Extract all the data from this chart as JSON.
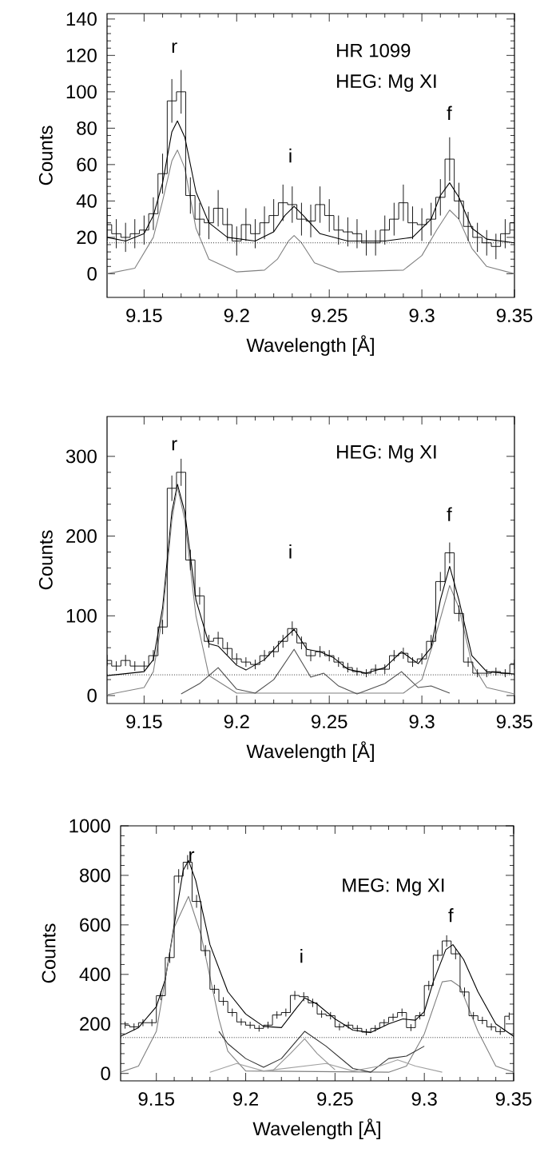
{
  "chart_data": [
    {
      "type": "line",
      "xlabel": "Wavelength [Å]",
      "ylabel": "Counts",
      "annotations": [
        "HR 1099",
        "HEG: Mg XI",
        "r",
        "i",
        "f"
      ],
      "xlim": [
        9.13,
        9.35
      ],
      "ylim": [
        -13,
        143
      ],
      "xticks": [
        9.15,
        9.2,
        9.25,
        9.3,
        9.35
      ],
      "yticks": [
        0,
        20,
        40,
        60,
        80,
        100,
        120,
        140
      ],
      "series": [
        {
          "type": "step",
          "color": "#000000",
          "x": [
            9.13,
            9.135,
            9.14,
            9.145,
            9.15,
            9.155,
            9.16,
            9.165,
            9.17,
            9.175,
            9.18,
            9.185,
            9.19,
            9.195,
            9.2,
            9.205,
            9.21,
            9.215,
            9.22,
            9.225,
            9.23,
            9.235,
            9.24,
            9.245,
            9.25,
            9.255,
            9.26,
            9.265,
            9.27,
            9.275,
            9.28,
            9.285,
            9.29,
            9.295,
            9.3,
            9.305,
            9.31,
            9.315,
            9.32,
            9.325,
            9.33,
            9.335,
            9.34,
            9.345,
            9.35
          ],
          "values": [
            27,
            22,
            20,
            22,
            24,
            33,
            55,
            95,
            100,
            43,
            30,
            28,
            36,
            27,
            18,
            27,
            22,
            28,
            32,
            39,
            38,
            30,
            29,
            38,
            32,
            24,
            23,
            22,
            17,
            17,
            24,
            30,
            39,
            28,
            27,
            30,
            42,
            63,
            40,
            26,
            20,
            17,
            15,
            22,
            28
          ],
          "errors": [
            9,
            8,
            8,
            8,
            8,
            9,
            11,
            12,
            12,
            10,
            9,
            9,
            10,
            9,
            8,
            9,
            8,
            9,
            9,
            10,
            10,
            9,
            9,
            10,
            9,
            8,
            8,
            8,
            7,
            7,
            8,
            9,
            10,
            9,
            9,
            9,
            10,
            12,
            10,
            8,
            8,
            7,
            7,
            8,
            9
          ]
        },
        {
          "color": "#000000",
          "x": [
            9.13,
            9.14,
            9.15,
            9.155,
            9.16,
            9.165,
            9.168,
            9.172,
            9.178,
            9.185,
            9.195,
            9.21,
            9.22,
            9.226,
            9.231,
            9.236,
            9.245,
            9.26,
            9.28,
            9.295,
            9.305,
            9.31,
            9.315,
            9.32,
            9.327,
            9.335,
            9.35
          ],
          "values": [
            20,
            18,
            22,
            32,
            50,
            78,
            84,
            75,
            45,
            28,
            20,
            18,
            23,
            32,
            37,
            32,
            22,
            18,
            18,
            20,
            30,
            43,
            50,
            42,
            25,
            19,
            17
          ]
        },
        {
          "color": "#808080",
          "x": [
            9.13,
            9.145,
            9.155,
            9.16,
            9.165,
            9.168,
            9.172,
            9.178,
            9.185,
            9.2,
            9.215,
            9.222,
            9.228,
            9.231,
            9.235,
            9.242,
            9.255,
            9.29,
            9.3,
            9.308,
            9.315,
            9.32,
            9.327,
            9.335,
            9.35
          ],
          "values": [
            0,
            3,
            20,
            40,
            62,
            68,
            58,
            25,
            8,
            1,
            2,
            8,
            18,
            21,
            17,
            6,
            1,
            2,
            10,
            24,
            35,
            30,
            14,
            4,
            0
          ]
        }
      ],
      "ref_lines": [
        {
          "axis": "y",
          "value": 17,
          "color": "#000000",
          "line_style": "dotted"
        }
      ]
    },
    {
      "type": "line",
      "xlabel": "Wavelength [Å]",
      "ylabel": "Counts",
      "annotations": [
        "HEG: Mg XI",
        "r",
        "i",
        "f"
      ],
      "xlim": [
        9.13,
        9.35
      ],
      "ylim": [
        -10,
        350
      ],
      "xticks": [
        9.15,
        9.2,
        9.25,
        9.3,
        9.35
      ],
      "yticks": [
        0,
        100,
        200,
        300
      ],
      "series": [
        {
          "type": "step",
          "color": "#000000",
          "x": [
            9.13,
            9.135,
            9.14,
            9.145,
            9.15,
            9.155,
            9.16,
            9.165,
            9.17,
            9.175,
            9.18,
            9.185,
            9.19,
            9.195,
            9.2,
            9.205,
            9.21,
            9.215,
            9.22,
            9.225,
            9.23,
            9.235,
            9.24,
            9.245,
            9.25,
            9.255,
            9.26,
            9.265,
            9.27,
            9.275,
            9.28,
            9.285,
            9.29,
            9.295,
            9.3,
            9.305,
            9.31,
            9.315,
            9.32,
            9.325,
            9.33,
            9.335,
            9.34,
            9.345,
            9.35
          ],
          "values": [
            44,
            37,
            44,
            37,
            37,
            50,
            86,
            260,
            280,
            170,
            125,
            68,
            72,
            59,
            46,
            42,
            39,
            50,
            55,
            68,
            84,
            66,
            50,
            55,
            50,
            42,
            35,
            30,
            28,
            33,
            33,
            50,
            53,
            42,
            46,
            68,
            143,
            179,
            103,
            42,
            28,
            28,
            30,
            28,
            39
          ],
          "errors": [
            7,
            6,
            7,
            6,
            6,
            7,
            9,
            16,
            17,
            13,
            11,
            8,
            8,
            8,
            7,
            6,
            6,
            7,
            7,
            8,
            9,
            8,
            7,
            7,
            7,
            6,
            6,
            5,
            5,
            6,
            6,
            7,
            7,
            6,
            7,
            8,
            12,
            13,
            10,
            6,
            5,
            5,
            5,
            5,
            6
          ]
        },
        {
          "color": "#000000",
          "x": [
            9.13,
            9.15,
            9.155,
            9.16,
            9.165,
            9.168,
            9.172,
            9.178,
            9.185,
            9.19,
            9.2,
            9.205,
            9.215,
            9.225,
            9.231,
            9.238,
            9.245,
            9.252,
            9.26,
            9.27,
            9.28,
            9.289,
            9.298,
            9.305,
            9.31,
            9.315,
            9.32,
            9.327,
            9.335,
            9.35
          ],
          "values": [
            25,
            30,
            45,
            110,
            230,
            265,
            230,
            120,
            65,
            62,
            38,
            32,
            45,
            70,
            83,
            58,
            55,
            48,
            33,
            28,
            35,
            55,
            40,
            60,
            120,
            162,
            120,
            50,
            30,
            27
          ]
        },
        {
          "color": "#808080",
          "x": [
            9.13,
            9.15,
            9.155,
            9.16,
            9.165,
            9.168,
            9.172,
            9.178,
            9.185,
            9.2,
            9.29,
            9.3,
            9.308,
            9.315,
            9.32,
            9.327,
            9.335,
            9.35
          ],
          "values": [
            1,
            10,
            30,
            100,
            220,
            262,
            220,
            100,
            25,
            3,
            3,
            20,
            80,
            138,
            110,
            40,
            10,
            2
          ]
        },
        {
          "color": "#505050",
          "x": [
            9.17,
            9.18,
            9.19,
            9.2,
            9.21,
            9.22,
            9.231,
            9.24,
            9.247,
            9.255,
            9.265,
            9.28,
            9.289,
            9.298,
            9.305,
            9.315
          ],
          "values": [
            2,
            15,
            35,
            8,
            3,
            20,
            58,
            23,
            28,
            12,
            2,
            15,
            30,
            10,
            12,
            3
          ]
        }
      ],
      "ref_lines": [
        {
          "axis": "y",
          "value": 26,
          "color": "#000000",
          "line_style": "dotted"
        }
      ]
    },
    {
      "type": "line",
      "xlabel": "Wavelength [Å]",
      "ylabel": "Counts",
      "annotations": [
        "MEG: Mg XI",
        "r",
        "i",
        "f"
      ],
      "xlim": [
        9.13,
        9.35
      ],
      "ylim": [
        -30,
        1000
      ],
      "xticks": [
        9.15,
        9.2,
        9.25,
        9.3,
        9.35
      ],
      "yticks": [
        0,
        200,
        400,
        600,
        800,
        1000
      ],
      "series": [
        {
          "type": "step",
          "color": "#000000",
          "x": [
            9.1325,
            9.1375,
            9.1425,
            9.1475,
            9.1525,
            9.1575,
            9.1625,
            9.1675,
            9.1725,
            9.1775,
            9.1825,
            9.1875,
            9.1925,
            9.1975,
            9.2025,
            9.2075,
            9.2125,
            9.2175,
            9.2225,
            9.2275,
            9.2325,
            9.2375,
            9.2425,
            9.2475,
            9.2525,
            9.2575,
            9.2625,
            9.2675,
            9.2725,
            9.2775,
            9.2825,
            9.2875,
            9.2925,
            9.2975,
            9.3025,
            9.3075,
            9.3125,
            9.3175,
            9.3225,
            9.3275,
            9.3325,
            9.3375,
            9.3425,
            9.3475
          ],
          "values": [
            195,
            188,
            205,
            205,
            314,
            468,
            797,
            853,
            695,
            496,
            340,
            291,
            246,
            208,
            195,
            182,
            195,
            236,
            246,
            315,
            310,
            285,
            240,
            233,
            188,
            195,
            182,
            167,
            182,
            205,
            227,
            246,
            185,
            233,
            355,
            477,
            535,
            483,
            329,
            233,
            214,
            188,
            169,
            231
          ],
          "errors": [
            14,
            14,
            14,
            14,
            18,
            22,
            28,
            29,
            26,
            22,
            18,
            17,
            16,
            14,
            14,
            13,
            14,
            15,
            16,
            18,
            18,
            17,
            15,
            15,
            14,
            14,
            13,
            13,
            13,
            14,
            15,
            16,
            14,
            15,
            19,
            22,
            23,
            22,
            18,
            15,
            15,
            14,
            13,
            15
          ]
        },
        {
          "color": "#000000",
          "x": [
            9.13,
            9.14,
            9.15,
            9.155,
            9.16,
            9.165,
            9.168,
            9.172,
            9.18,
            9.19,
            9.2,
            9.21,
            9.22,
            9.228,
            9.233,
            9.24,
            9.25,
            9.26,
            9.27,
            9.28,
            9.288,
            9.295,
            9.3,
            9.305,
            9.312,
            9.316,
            9.322,
            9.33,
            9.34,
            9.35
          ],
          "values": [
            150,
            185,
            270,
            380,
            600,
            820,
            860,
            780,
            520,
            330,
            240,
            190,
            185,
            260,
            305,
            280,
            220,
            175,
            165,
            200,
            220,
            215,
            250,
            370,
            500,
            520,
            460,
            330,
            200,
            150
          ]
        },
        {
          "color": "#808080",
          "x": [
            9.13,
            9.14,
            9.15,
            9.16,
            9.168,
            9.175,
            9.185,
            9.19,
            9.2,
            9.28,
            9.29,
            9.3,
            9.31,
            9.315,
            9.32,
            9.33,
            9.34,
            9.35
          ],
          "values": [
            5,
            30,
            170,
            590,
            715,
            560,
            220,
            90,
            10,
            5,
            30,
            160,
            370,
            375,
            350,
            170,
            30,
            5
          ]
        },
        {
          "color": "#303030",
          "x": [
            9.185,
            9.19,
            9.2,
            9.21,
            9.22,
            9.233,
            9.245,
            9.26,
            9.27,
            9.28,
            9.29,
            9.3
          ],
          "values": [
            170,
            120,
            60,
            25,
            60,
            170,
            110,
            20,
            5,
            60,
            70,
            110
          ]
        },
        {
          "color": "#909090",
          "x": [
            9.215,
            9.225,
            9.233,
            9.24,
            9.25
          ],
          "values": [
            10,
            80,
            140,
            80,
            15
          ]
        },
        {
          "color": "#a0a0a0",
          "x": [
            9.18,
            9.195,
            9.21,
            9.245,
            9.26,
            9.275,
            9.285,
            9.295,
            9.31
          ],
          "values": [
            5,
            40,
            10,
            40,
            10,
            30,
            55,
            30,
            5
          ]
        }
      ],
      "ref_lines": [
        {
          "axis": "y",
          "value": 145,
          "color": "#000000",
          "line_style": "dotted"
        }
      ]
    }
  ]
}
